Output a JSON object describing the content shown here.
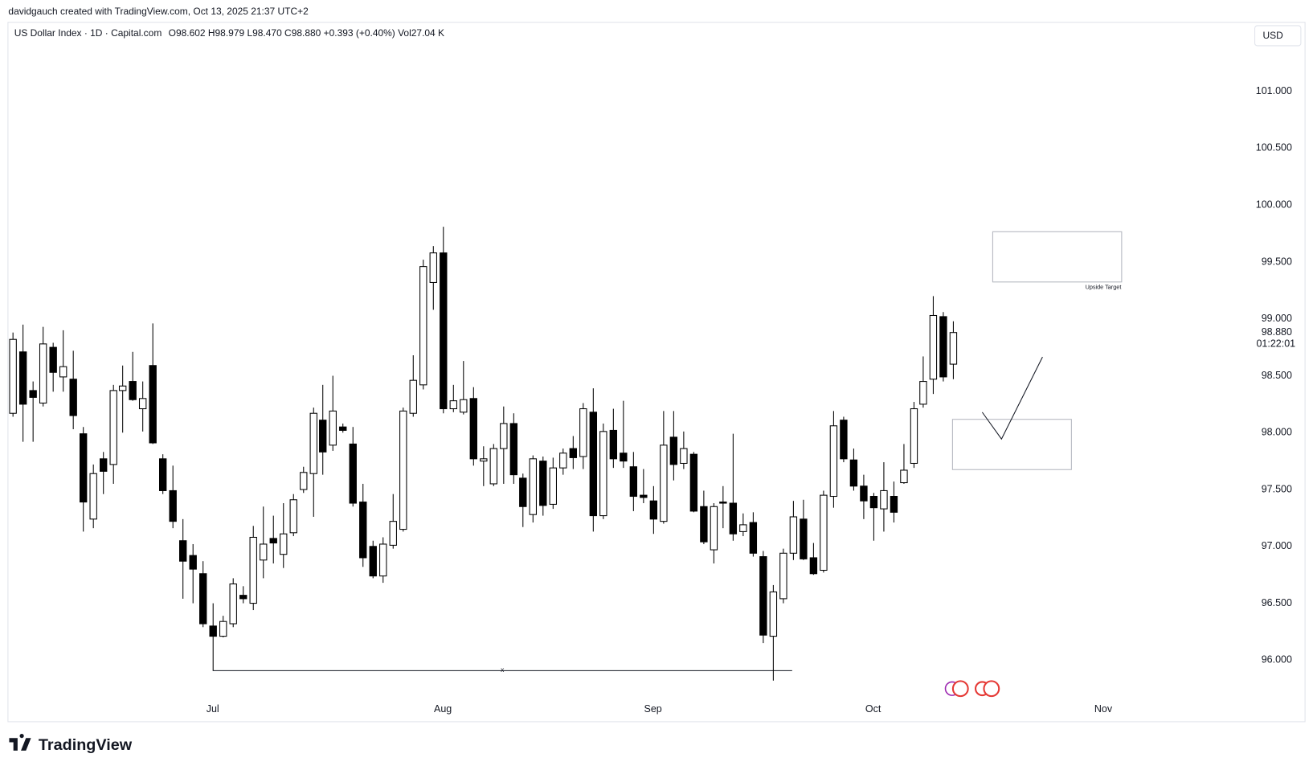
{
  "attribution": "davidgauch created with TradingView.com, Oct 13, 2025 21:37 UTC+2",
  "currency_button": "USD",
  "logo": "TradingView",
  "chart_data": {
    "type": "candlestick",
    "title": "US Dollar Index · 1D · Capital.com",
    "ohlc_line": "O98.602 H98.979 L98.470 C98.880 +0.393 (+0.40%) Vol27.04 K",
    "last_price": {
      "value": 98.88,
      "label": "98.880"
    },
    "countdown": "01:22:01",
    "annotations": {
      "line_marker": "x",
      "target_label": "Upside Target"
    },
    "up_color": "#ffffff",
    "down_color": "#000000",
    "wick_color": "#000000",
    "grid": false,
    "ylim": [
      95.676,
      101.596
    ],
    "yticks": [
      {
        "value": 96,
        "label": "96.000"
      },
      {
        "value": 96.5,
        "label": "96.500"
      },
      {
        "value": 97,
        "label": "97.000"
      },
      {
        "value": 97.5,
        "label": "97.500"
      },
      {
        "value": 98,
        "label": "98.000"
      },
      {
        "value": 98.5,
        "label": "98.500"
      },
      {
        "value": 99,
        "label": "99.000"
      },
      {
        "value": 99.5,
        "label": "99.500"
      },
      {
        "value": 100,
        "label": "100.000"
      },
      {
        "value": 100.5,
        "label": "100.500"
      },
      {
        "value": 101,
        "label": "101.000"
      }
    ],
    "categories": [
      null,
      null,
      null,
      null,
      null,
      null,
      null,
      null,
      null,
      null,
      null,
      null,
      null,
      null,
      null,
      null,
      null,
      null,
      null,
      null,
      "Jul",
      null,
      null,
      null,
      null,
      null,
      null,
      null,
      null,
      null,
      null,
      null,
      null,
      null,
      null,
      null,
      null,
      null,
      null,
      null,
      null,
      null,
      null,
      "Aug",
      null,
      null,
      null,
      null,
      null,
      null,
      null,
      null,
      null,
      null,
      null,
      null,
      null,
      null,
      null,
      null,
      null,
      null,
      null,
      null,
      "Sep",
      null,
      null,
      null,
      null,
      null,
      null,
      null,
      null,
      null,
      null,
      null,
      null,
      null,
      null,
      null,
      null,
      null,
      null,
      null,
      null,
      null,
      "Oct",
      null,
      null,
      null,
      null,
      null,
      null,
      null,
      null,
      null,
      null,
      null,
      null,
      null,
      null,
      null,
      null,
      null,
      null,
      null,
      null,
      null,
      null,
      "Nov"
    ],
    "open": [
      98.17,
      98.71,
      98.37,
      98.26,
      98.75,
      98.49,
      98.47,
      97.99,
      97.24,
      97.77,
      97.72,
      98.37,
      98.45,
      98.21,
      98.59,
      97.77,
      97.49,
      97.05,
      96.92,
      96.76,
      96.3,
      96.21,
      96.32,
      96.57,
      96.5,
      96.88,
      97.07,
      96.93,
      97.12,
      97.5,
      97.64,
      98.11,
      97.89,
      98.05,
      97.9,
      97.39,
      97.0,
      96.74,
      97.01,
      97.15,
      98.17,
      98.42,
      99.32,
      99.58,
      98.21,
      98.18,
      98.3,
      97.75,
      97.55,
      97.86,
      98.08,
      97.6,
      97.28,
      97.75,
      97.37,
      97.69,
      97.86,
      97.79,
      98.18,
      97.27,
      98.02,
      97.82,
      97.7,
      97.45,
      97.4,
      97.22,
      97.96,
      97.73,
      97.81,
      97.35,
      96.97,
      97.39,
      97.38,
      97.13,
      97.21,
      96.91,
      96.21,
      96.54,
      96.94,
      97.24,
      96.9,
      96.79,
      97.44,
      98.11,
      97.76,
      97.53,
      97.44,
      97.33,
      97.44,
      97.56,
      97.73,
      98.25,
      98.47,
      99.02,
      98.602,
      null,
      null,
      null,
      null,
      null,
      null,
      null,
      null,
      null,
      null,
      null,
      null,
      null,
      null,
      null
    ],
    "high": [
      98.88,
      98.95,
      98.45,
      98.93,
      98.79,
      98.9,
      98.72,
      98.05,
      97.72,
      97.83,
      98.42,
      98.59,
      98.71,
      98.45,
      98.96,
      97.81,
      97.71,
      97.24,
      97.02,
      96.87,
      96.5,
      96.39,
      96.72,
      96.65,
      97.18,
      97.35,
      97.27,
      97.38,
      97.46,
      97.7,
      98.22,
      98.42,
      98.5,
      98.08,
      98.05,
      97.55,
      97.05,
      97.08,
      97.46,
      98.22,
      98.68,
      99.52,
      99.64,
      99.81,
      98.42,
      98.63,
      98.4,
      97.88,
      97.9,
      98.23,
      98.17,
      97.64,
      97.8,
      97.79,
      97.78,
      97.86,
      97.97,
      98.26,
      98.39,
      98.08,
      98.21,
      98.28,
      97.83,
      97.68,
      97.53,
      98.19,
      98.19,
      98.01,
      97.83,
      97.49,
      97.38,
      97.53,
      97.99,
      97.29,
      97.3,
      96.96,
      96.66,
      96.98,
      97.4,
      97.41,
      97.03,
      97.49,
      98.19,
      98.14,
      97.86,
      97.63,
      97.47,
      97.74,
      97.57,
      97.9,
      98.27,
      98.67,
      99.2,
      99.06,
      98.979,
      null,
      null,
      null,
      null,
      null,
      null,
      null,
      null,
      null,
      null,
      null,
      null,
      null,
      null,
      null
    ],
    "low": [
      98.14,
      97.92,
      97.92,
      98.23,
      98.36,
      98.36,
      98.03,
      97.13,
      97.16,
      97.46,
      97.55,
      98.0,
      98.28,
      98.01,
      97.9,
      97.46,
      97.16,
      96.54,
      96.5,
      96.29,
      95.91,
      96.2,
      96.29,
      96.5,
      96.44,
      96.72,
      96.85,
      96.81,
      97.09,
      97.47,
      97.26,
      97.63,
      97.84,
      98.0,
      97.35,
      96.82,
      96.72,
      96.68,
      96.98,
      97.13,
      98.14,
      98.38,
      99.08,
      98.17,
      98.18,
      98.16,
      97.71,
      97.53,
      97.53,
      97.55,
      97.55,
      97.17,
      97.21,
      97.27,
      97.33,
      97.63,
      97.68,
      97.68,
      97.13,
      97.24,
      97.69,
      97.69,
      97.31,
      97.38,
      97.11,
      97.2,
      97.58,
      97.68,
      97.3,
      97.02,
      96.85,
      97.16,
      97.05,
      97.09,
      96.91,
      96.15,
      95.82,
      96.5,
      96.88,
      96.88,
      96.75,
      96.77,
      97.34,
      97.74,
      97.49,
      97.24,
      97.05,
      97.13,
      97.21,
      97.55,
      97.69,
      98.22,
      98.34,
      98.45,
      98.47,
      null,
      null,
      null,
      null,
      null,
      null,
      null,
      null,
      null,
      null,
      null,
      null,
      null,
      null,
      null
    ],
    "close": [
      98.82,
      98.25,
      98.31,
      98.78,
      98.53,
      98.58,
      98.15,
      97.39,
      97.64,
      97.66,
      98.37,
      98.41,
      98.29,
      98.3,
      97.91,
      97.49,
      97.22,
      96.87,
      96.8,
      96.32,
      96.21,
      96.34,
      96.67,
      96.54,
      97.08,
      97.02,
      97.03,
      97.11,
      97.41,
      97.65,
      98.17,
      97.83,
      98.19,
      98.02,
      97.38,
      96.9,
      96.74,
      97.02,
      97.22,
      98.19,
      98.46,
      99.46,
      99.58,
      98.21,
      98.28,
      98.29,
      97.77,
      97.77,
      97.86,
      98.08,
      97.63,
      97.35,
      97.77,
      97.36,
      97.69,
      97.82,
      97.78,
      98.21,
      97.27,
      98.01,
      97.77,
      97.75,
      97.44,
      97.43,
      97.24,
      97.89,
      97.72,
      97.86,
      97.31,
      97.04,
      97.35,
      97.38,
      97.11,
      97.19,
      96.94,
      96.22,
      96.6,
      96.94,
      97.26,
      96.89,
      96.76,
      97.45,
      98.06,
      97.77,
      97.53,
      97.4,
      97.34,
      97.49,
      97.3,
      97.67,
      98.21,
      98.45,
      99.03,
      98.49,
      98.88,
      null,
      null,
      null,
      null,
      null,
      null,
      null,
      null,
      null,
      null,
      null,
      null,
      null,
      null,
      null
    ]
  }
}
